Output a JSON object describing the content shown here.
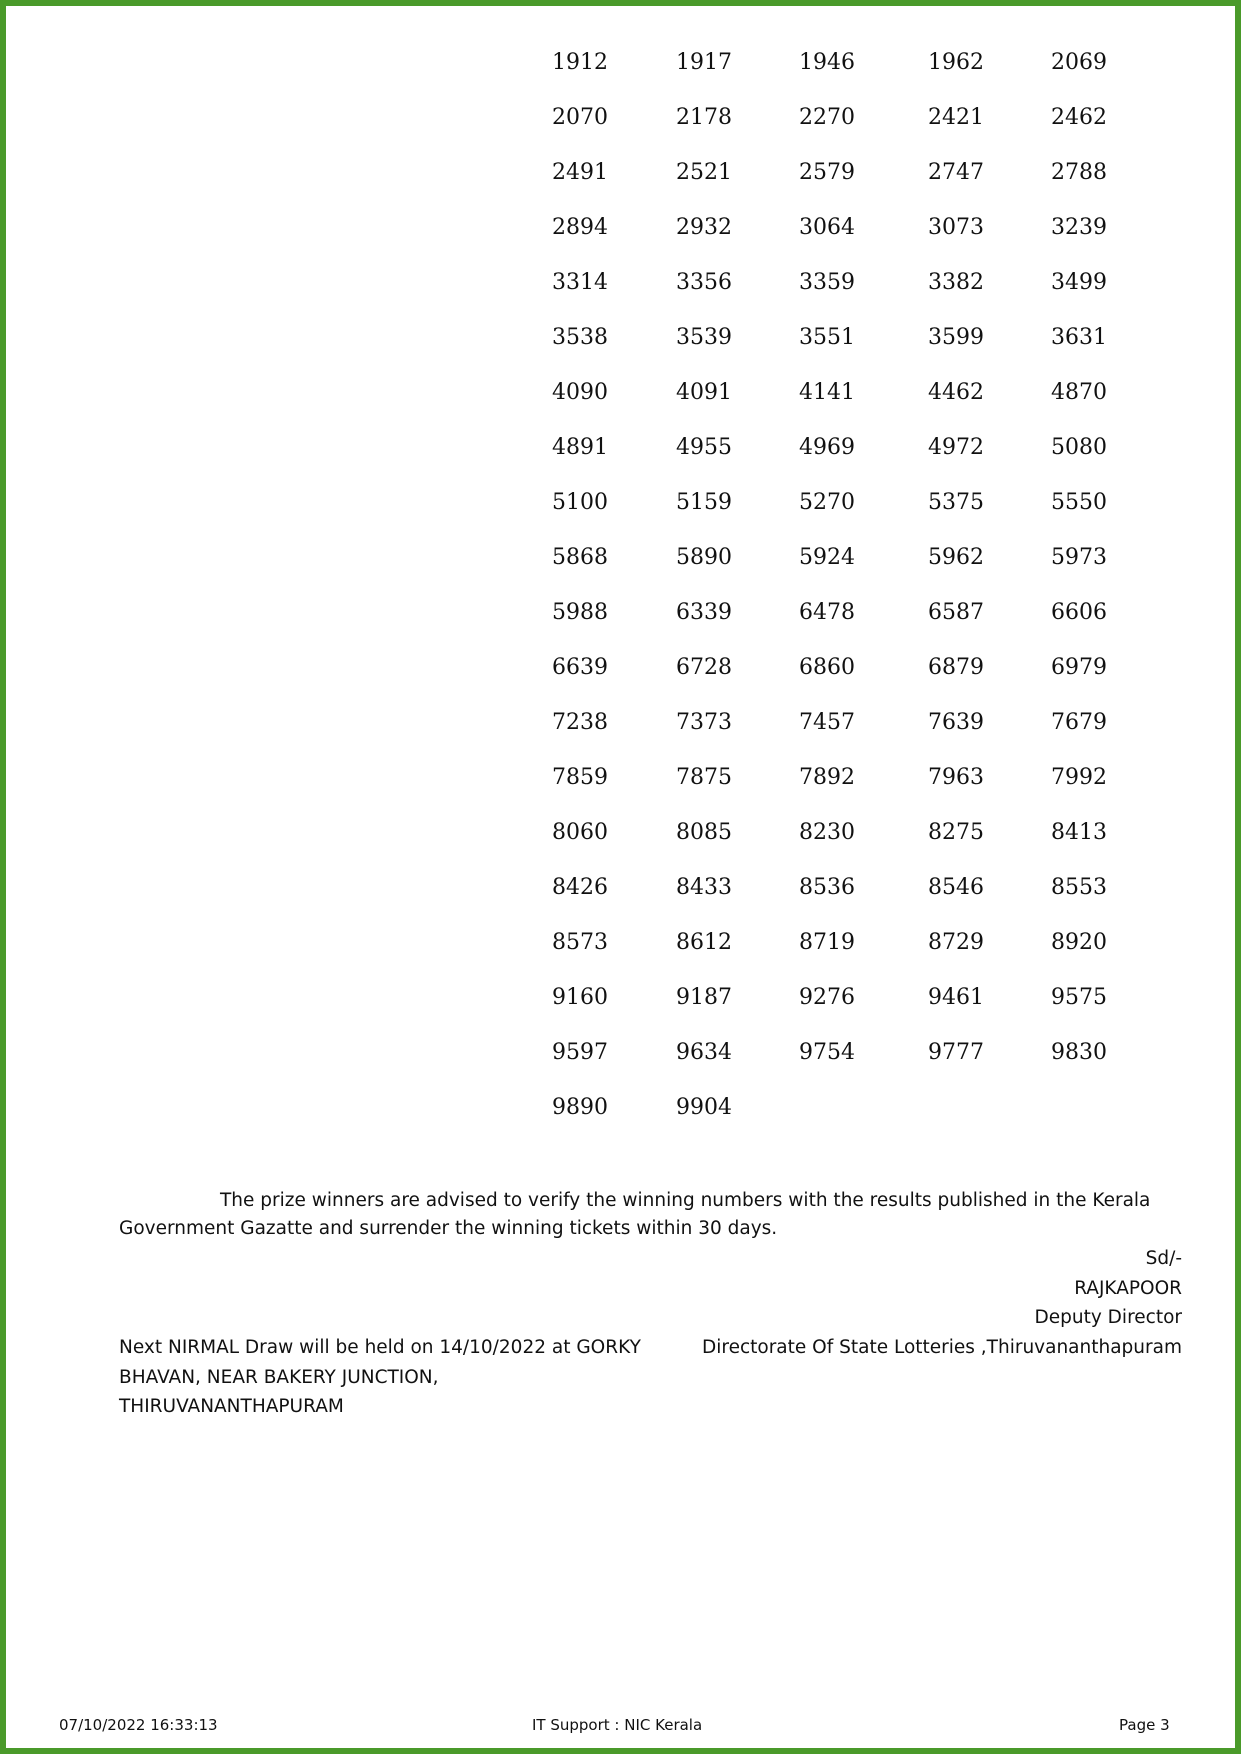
{
  "numbers": [
    "1912",
    "1917",
    "1946",
    "1962",
    "2069",
    "2070",
    "2178",
    "2270",
    "2421",
    "2462",
    "2491",
    "2521",
    "2579",
    "2747",
    "2788",
    "2894",
    "2932",
    "3064",
    "3073",
    "3239",
    "3314",
    "3356",
    "3359",
    "3382",
    "3499",
    "3538",
    "3539",
    "3551",
    "3599",
    "3631",
    "4090",
    "4091",
    "4141",
    "4462",
    "4870",
    "4891",
    "4955",
    "4969",
    "4972",
    "5080",
    "5100",
    "5159",
    "5270",
    "5375",
    "5550",
    "5868",
    "5890",
    "5924",
    "5962",
    "5973",
    "5988",
    "6339",
    "6478",
    "6587",
    "6606",
    "6639",
    "6728",
    "6860",
    "6879",
    "6979",
    "7238",
    "7373",
    "7457",
    "7639",
    "7679",
    "7859",
    "7875",
    "7892",
    "7963",
    "7992",
    "8060",
    "8085",
    "8230",
    "8275",
    "8413",
    "8426",
    "8433",
    "8536",
    "8546",
    "8553",
    "8573",
    "8612",
    "8719",
    "8729",
    "8920",
    "9160",
    "9187",
    "9276",
    "9461",
    "9575",
    "9597",
    "9634",
    "9754",
    "9777",
    "9830",
    "9890",
    "9904"
  ],
  "notice": {
    "line1": "The prize winners are advised to verify the winning numbers with the results published in the Kerala",
    "line2": "Government Gazatte and surrender the winning tickets within 30 days."
  },
  "signature": {
    "sd": "Sd/-",
    "name": "RAJKAPOOR",
    "designation": "Deputy Director",
    "office": "Directorate Of State Lotteries ,Thiruvananthapuram"
  },
  "next_draw": {
    "line1": "Next NIRMAL Draw will be held on 14/10/2022 at GORKY",
    "line2": "BHAVAN,  NEAR BAKERY JUNCTION,",
    "line3": "THIRUVANANTHAPURAM"
  },
  "footer": {
    "timestamp": "07/10/2022 16:33:13",
    "support": "IT Support : NIC Kerala",
    "page": "Page 3"
  },
  "colors": {
    "border": "#4a9a2a"
  }
}
